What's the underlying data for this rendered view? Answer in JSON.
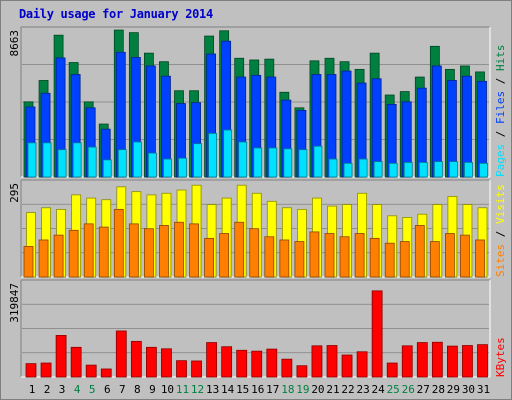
{
  "title": "Daily usage for January 2014",
  "colors": {
    "hits": "#008040",
    "files": "#0040ff",
    "pages": "#00e0ff",
    "visits": "#ffff00",
    "sites": "#ff8000",
    "kbytes": "#ff0000",
    "weekend_label": "#008040",
    "weekday_label": "#000000"
  },
  "chart_data": [
    {
      "type": "bar",
      "panel": "hits-files-pages",
      "ymax_label": "8663",
      "ylim": [
        0,
        8663
      ],
      "right_labels": [
        "Pages",
        "Files",
        "Hits"
      ],
      "categories": [
        "1",
        "2",
        "3",
        "4",
        "5",
        "6",
        "7",
        "8",
        "9",
        "10",
        "11",
        "12",
        "13",
        "14",
        "15",
        "16",
        "17",
        "18",
        "19",
        "20",
        "21",
        "22",
        "23",
        "24",
        "25",
        "26",
        "27",
        "28",
        "29",
        "30",
        "31"
      ],
      "weekend_days": [
        "4",
        "5",
        "11",
        "12",
        "18",
        "19",
        "25",
        "26"
      ],
      "series": [
        {
          "name": "Hits",
          "values": [
            4400,
            5650,
            8300,
            6700,
            4400,
            3100,
            8600,
            8450,
            7250,
            6750,
            5050,
            5050,
            8250,
            8560,
            6950,
            6850,
            6900,
            4960,
            4050,
            6800,
            6950,
            6750,
            6300,
            7250,
            4800,
            5000,
            5850,
            7650,
            6300,
            6500,
            6150
          ]
        },
        {
          "name": "Files",
          "values": [
            4100,
            4900,
            6970,
            6000,
            4050,
            2800,
            7300,
            7000,
            6500,
            5900,
            4300,
            4350,
            7200,
            7950,
            5850,
            5950,
            5850,
            4500,
            3900,
            6000,
            6000,
            6200,
            5500,
            5750,
            4250,
            4400,
            5200,
            6500,
            5650,
            5900,
            5600
          ]
        },
        {
          "name": "Pages",
          "values": [
            2000,
            2000,
            1600,
            2000,
            1750,
            1000,
            1600,
            2050,
            1400,
            1050,
            1100,
            1950,
            2550,
            2750,
            2050,
            1700,
            1700,
            1650,
            1600,
            1800,
            1050,
            800,
            1050,
            900,
            800,
            850,
            850,
            900,
            900,
            850,
            800
          ]
        }
      ]
    },
    {
      "type": "bar",
      "panel": "visits-sites",
      "ymax_label": "295",
      "ylim": [
        0,
        295
      ],
      "right_labels": [
        "Sites",
        "Visits"
      ],
      "categories": [
        "1",
        "2",
        "3",
        "4",
        "5",
        "6",
        "7",
        "8",
        "9",
        "10",
        "11",
        "12",
        "13",
        "14",
        "15",
        "16",
        "17",
        "18",
        "19",
        "20",
        "21",
        "22",
        "23",
        "24",
        "25",
        "26",
        "27",
        "28",
        "29",
        "30",
        "31"
      ],
      "series": [
        {
          "name": "Visits",
          "values": [
            200,
            215,
            210,
            255,
            245,
            240,
            280,
            265,
            255,
            260,
            270,
            285,
            225,
            245,
            285,
            260,
            235,
            215,
            210,
            245,
            220,
            225,
            260,
            225,
            190,
            185,
            195,
            225,
            250,
            225,
            215
          ]
        },
        {
          "name": "Sites",
          "values": [
            95,
            115,
            130,
            145,
            165,
            155,
            210,
            165,
            150,
            160,
            170,
            165,
            120,
            135,
            170,
            150,
            125,
            115,
            110,
            140,
            135,
            125,
            135,
            120,
            105,
            110,
            160,
            110,
            135,
            130,
            115
          ]
        }
      ]
    },
    {
      "type": "bar",
      "panel": "kbytes",
      "ymax_label": "319847",
      "ylim": [
        0,
        319847
      ],
      "right_labels": [
        "KBytes"
      ],
      "categories": [
        "1",
        "2",
        "3",
        "4",
        "5",
        "6",
        "7",
        "8",
        "9",
        "10",
        "11",
        "12",
        "13",
        "14",
        "15",
        "16",
        "17",
        "18",
        "19",
        "20",
        "21",
        "22",
        "23",
        "24",
        "25",
        "26",
        "27",
        "28",
        "29",
        "30",
        "31"
      ],
      "series": [
        {
          "name": "KBytes",
          "values": [
            45000,
            47000,
            140000,
            100000,
            40000,
            27000,
            155000,
            120000,
            100000,
            95000,
            55000,
            54000,
            116000,
            102000,
            90000,
            87000,
            94000,
            60000,
            38000,
            105000,
            106000,
            74000,
            85000,
            290000,
            47000,
            105000,
            116000,
            117000,
            104000,
            106000,
            109000
          ]
        }
      ]
    }
  ]
}
